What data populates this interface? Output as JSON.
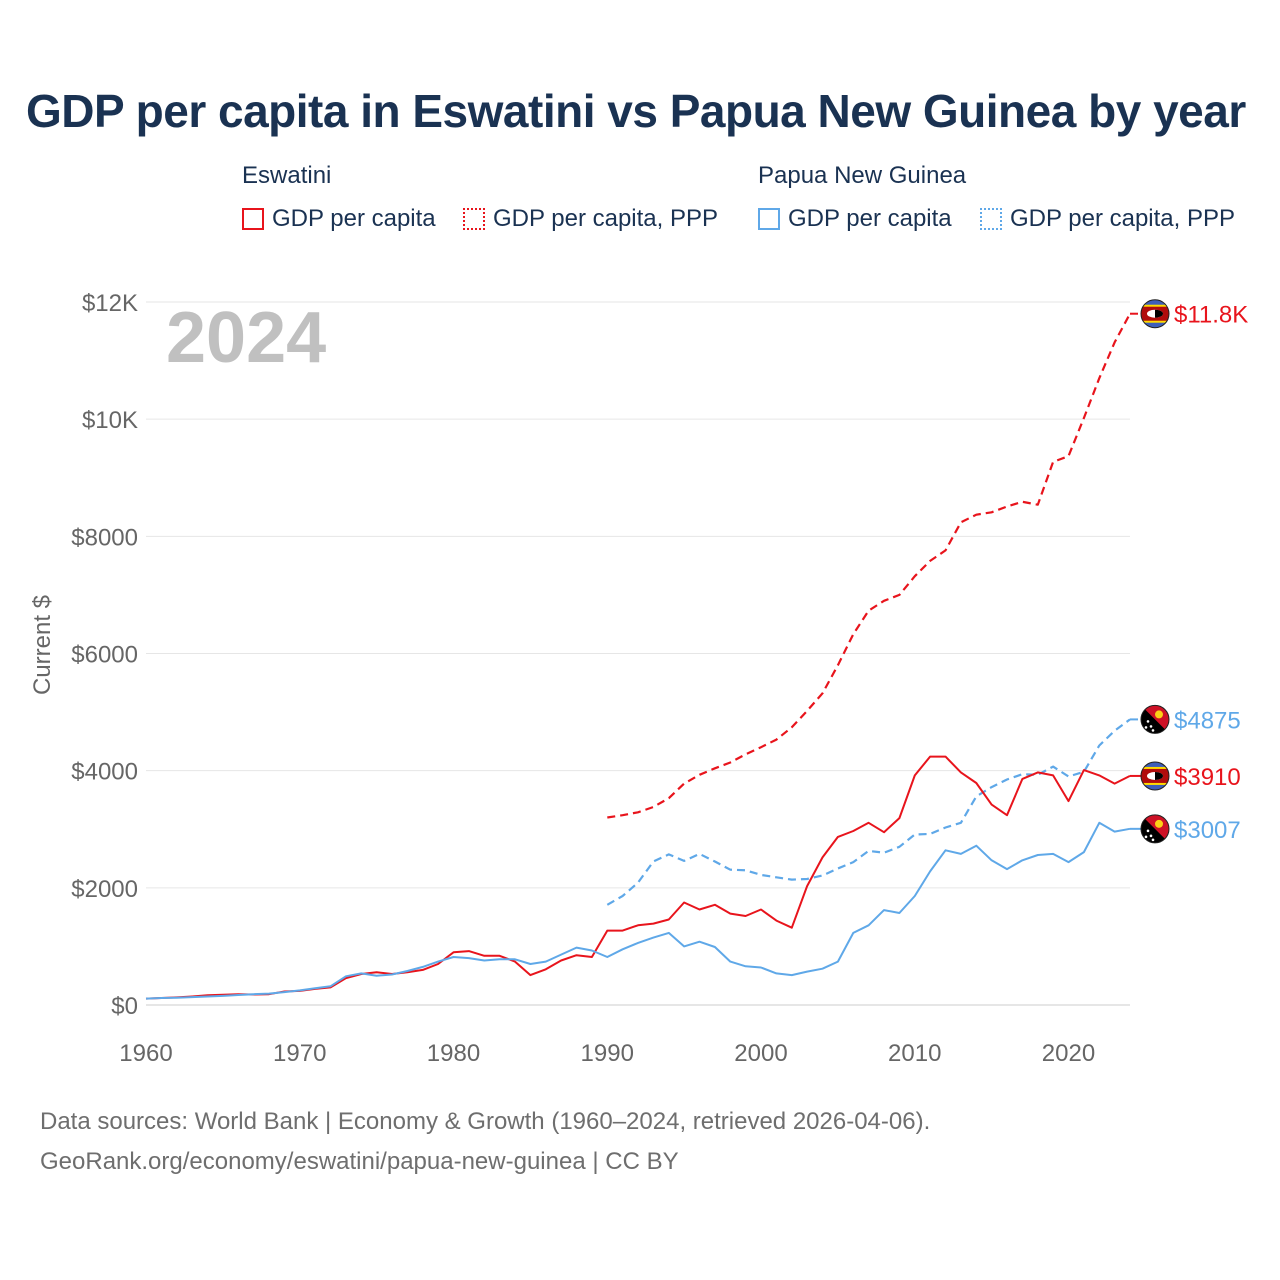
{
  "title": "GDP per capita in Eswatini vs Papua New Guinea by year",
  "legend": {
    "groups": [
      {
        "name": "Eswatini",
        "color": "#e8141c",
        "items": [
          {
            "label": "GDP per capita",
            "style": "solid"
          },
          {
            "label": "GDP per capita, PPP",
            "style": "dotted"
          }
        ]
      },
      {
        "name": "Papua New Guinea",
        "color": "#5fa8e8",
        "items": [
          {
            "label": "GDP per capita",
            "style": "solid"
          },
          {
            "label": "GDP per capita, PPP",
            "style": "dotted"
          }
        ]
      }
    ]
  },
  "footer": {
    "line1": "Data sources: World Bank | Economy & Growth (1960–2024, retrieved 2026-04-06).",
    "line2": "GeoRank.org/economy/eswatini/papua-new-guinea | CC BY"
  },
  "colors": {
    "eswatini": "#e8141c",
    "png": "#5fa8e8",
    "axis_text": "#666666",
    "year_label": "#c0c0c0",
    "grid": "#e6e6e6"
  },
  "chart_data": {
    "type": "line",
    "year_label": "2024",
    "ylabel": "Current $",
    "xlim": [
      1960,
      2024
    ],
    "ylim": [
      0,
      12000
    ],
    "x_ticks": [
      1960,
      1970,
      1980,
      1990,
      2000,
      2010,
      2020
    ],
    "x_tick_labels": [
      "1960",
      "1970",
      "1980",
      "1990",
      "2000",
      "2010",
      "2020"
    ],
    "y_ticks": [
      0,
      2000,
      4000,
      6000,
      8000,
      10000,
      12000
    ],
    "y_tick_labels": [
      "$0",
      "$2000",
      "$4000",
      "$6000",
      "$8000",
      "$10K",
      "$12K"
    ],
    "series": [
      {
        "name": "Eswatini — GDP per capita, PPP",
        "country": "Eswatini",
        "color_key": "eswatini",
        "dash": "dashed",
        "start_year": 1990,
        "values": [
          3200,
          3240,
          3290,
          3380,
          3530,
          3780,
          3930,
          4040,
          4140,
          4280,
          4400,
          4530,
          4740,
          5020,
          5320,
          5800,
          6330,
          6730,
          6900,
          7000,
          7320,
          7580,
          7760,
          8240,
          8370,
          8410,
          8510,
          8590,
          8540,
          9270,
          9370,
          10020,
          10700,
          11310,
          11800
        ],
        "end_label": "$11.8K",
        "flag": "eswatini"
      },
      {
        "name": "Papua New Guinea — GDP per capita, PPP",
        "country": "Papua New Guinea",
        "color_key": "png",
        "dash": "dashed",
        "start_year": 1990,
        "values": [
          1710,
          1860,
          2090,
          2450,
          2570,
          2460,
          2580,
          2450,
          2310,
          2300,
          2220,
          2180,
          2140,
          2150,
          2210,
          2330,
          2440,
          2630,
          2600,
          2700,
          2910,
          2920,
          3030,
          3110,
          3560,
          3720,
          3850,
          3940,
          3930,
          4070,
          3900,
          3980,
          4430,
          4680,
          4875
        ],
        "end_label": "$4875",
        "flag": "png"
      },
      {
        "name": "Eswatini — GDP per capita",
        "country": "Eswatini",
        "color_key": "eswatini",
        "dash": "solid",
        "start_year": 1960,
        "values": [
          110,
          120,
          130,
          145,
          165,
          175,
          185,
          180,
          185,
          230,
          240,
          275,
          300,
          460,
          530,
          560,
          530,
          560,
          600,
          700,
          900,
          920,
          840,
          840,
          740,
          510,
          610,
          760,
          850,
          820,
          1270,
          1270,
          1360,
          1390,
          1460,
          1750,
          1630,
          1710,
          1560,
          1520,
          1630,
          1440,
          1320,
          2030,
          2520,
          2870,
          2970,
          3110,
          2950,
          3190,
          3920,
          4240,
          4240,
          3970,
          3790,
          3420,
          3240,
          3860,
          3970,
          3920,
          3480,
          4010,
          3920,
          3780,
          3910
        ],
        "end_label": "$3910",
        "flag": "eswatini"
      },
      {
        "name": "Papua New Guinea — GDP per capita",
        "country": "Papua New Guinea",
        "color_key": "png",
        "dash": "solid",
        "start_year": 1960,
        "values": [
          110,
          120,
          125,
          135,
          145,
          155,
          170,
          185,
          195,
          220,
          250,
          285,
          320,
          490,
          540,
          500,
          520,
          580,
          650,
          740,
          820,
          800,
          760,
          780,
          780,
          700,
          740,
          860,
          980,
          930,
          820,
          950,
          1060,
          1150,
          1230,
          1000,
          1080,
          990,
          740,
          660,
          640,
          540,
          510,
          570,
          620,
          740,
          1230,
          1360,
          1620,
          1570,
          1860,
          2280,
          2640,
          2580,
          2720,
          2470,
          2320,
          2470,
          2560,
          2580,
          2440,
          2610,
          3110,
          2960,
          3007
        ],
        "end_label": "$3007",
        "flag": "png"
      }
    ]
  }
}
